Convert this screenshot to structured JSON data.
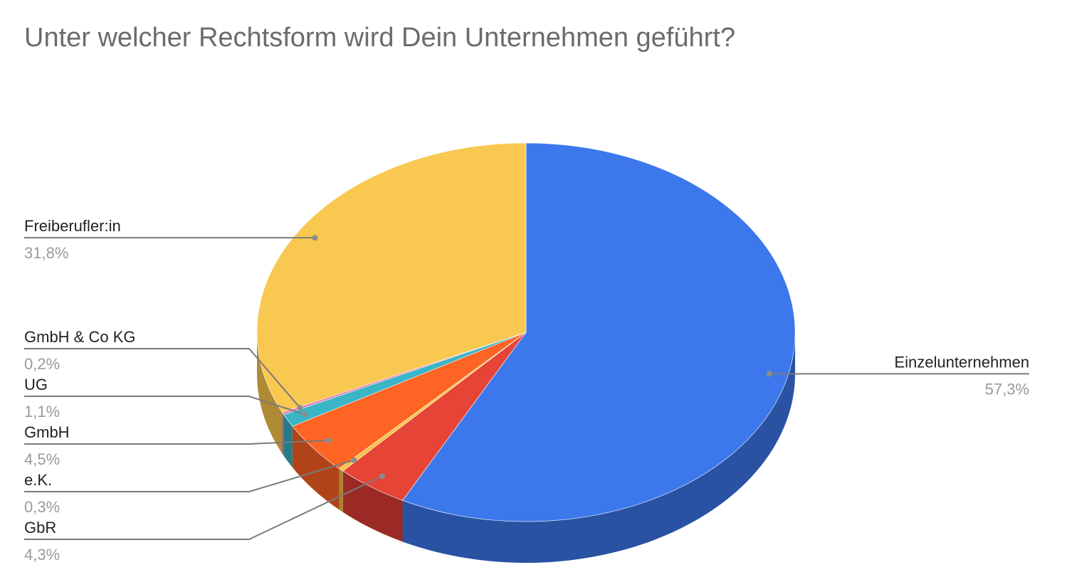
{
  "chart_data": {
    "type": "pie",
    "title": "Unter welcher Rechtsform wird Dein Unternehmen geführt?",
    "slices": [
      {
        "label": "Einzelunternehmen",
        "value": 57.3,
        "value_label": "57,3%",
        "color": "#3c78ec",
        "side_color": "#2952a3"
      },
      {
        "label": "GbR",
        "value": 4.3,
        "value_label": "4,3%",
        "color": "#e64436",
        "side_color": "#9b2a24"
      },
      {
        "label": "e.K.",
        "value": 0.3,
        "value_label": "0,3%",
        "color": "#f6c342",
        "side_color": "#a8852c"
      },
      {
        "label": "GmbH",
        "value": 4.5,
        "value_label": "4,5%",
        "color": "#fe6424",
        "side_color": "#b04418"
      },
      {
        "label": "UG",
        "value": 1.1,
        "value_label": "1,1%",
        "color": "#3ab5c6",
        "side_color": "#257c88"
      },
      {
        "label": "GmbH & Co KG",
        "value": 0.2,
        "value_label": "0,2%",
        "color": "#e27cb4",
        "side_color": "#9a557b"
      },
      {
        "label": "Freiberufler:in",
        "value": 31.8,
        "value_label": "31,8%",
        "color": "#f9c851",
        "side_color": "#ae8a35"
      }
    ],
    "three_d": true,
    "labels": "outside-with-leader-lines"
  }
}
